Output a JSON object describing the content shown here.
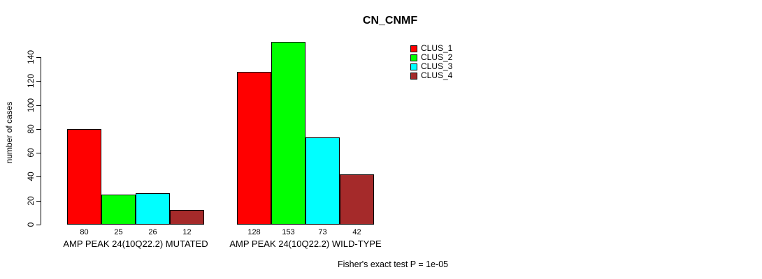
{
  "title": "CN_CNMF",
  "footnote": "Fisher's exact test P = 1e-05",
  "chart_data": {
    "type": "bar",
    "title": "CN_CNMF",
    "categories": [
      "AMP PEAK 24(10Q22.2) MUTATED",
      "AMP PEAK 24(10Q22.2) WILD-TYPE"
    ],
    "series": [
      {
        "name": "CLUS_1",
        "color": "#FF0000",
        "values": [
          80,
          128
        ]
      },
      {
        "name": "CLUS_2",
        "color": "#00FF00",
        "values": [
          25,
          153
        ]
      },
      {
        "name": "CLUS_3",
        "color": "#00FFFF",
        "values": [
          26,
          73
        ]
      },
      {
        "name": "CLUS_4",
        "color": "#A52A2A",
        "values": [
          12,
          42
        ]
      }
    ],
    "xlabel": "",
    "ylabel": "number of cases",
    "yticks": [
      0,
      20,
      40,
      60,
      80,
      100,
      120,
      140
    ],
    "ylim": [
      0,
      140
    ],
    "grid": false,
    "legend_position": "top-right",
    "bar_value_labels": true,
    "annotation": "Fisher's exact test P = 1e-05"
  }
}
